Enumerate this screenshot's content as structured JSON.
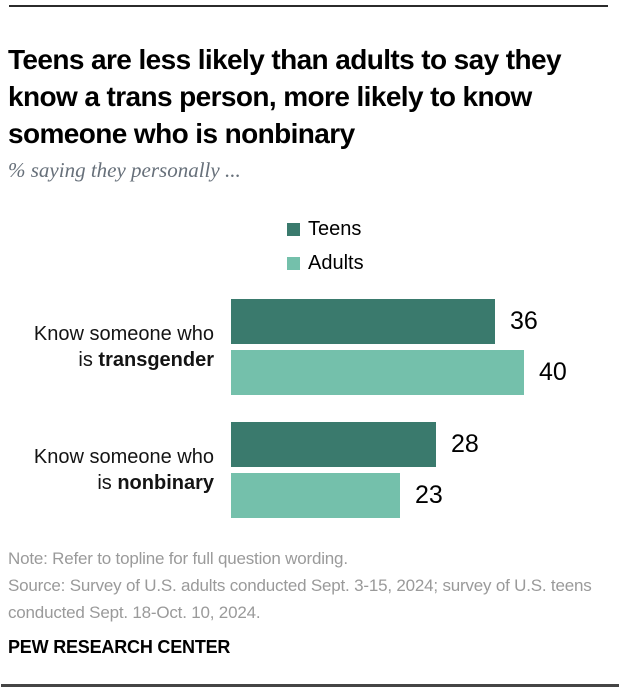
{
  "header": {
    "title": "Teens are less likely than adults to say they know a trans person, more likely to know someone who is nonbinary",
    "subtitle": "% saying they personally ..."
  },
  "chart_data": {
    "type": "bar",
    "orientation": "horizontal",
    "unit": "%",
    "value_range": [
      0,
      100
    ],
    "axis_shown": false,
    "legend_position": "top-center",
    "categories": [
      {
        "line1": "Know someone who",
        "line2_prefix": "is ",
        "line2_bold": "transgender"
      },
      {
        "line1": "Know someone who",
        "line2_prefix": "is ",
        "line2_bold": "nonbinary"
      }
    ],
    "series": [
      {
        "name": "Teens",
        "color": "#3A7A6D",
        "values": [
          36,
          28
        ]
      },
      {
        "name": "Adults",
        "color": "#74C0AB",
        "values": [
          40,
          23
        ]
      }
    ]
  },
  "footer": {
    "note": "Note: Refer to topline for full question wording.",
    "source": "Source: Survey of U.S. adults conducted Sept. 3-15, 2024; survey of U.S. teens conducted Sept. 18-Oct. 10, 2024.",
    "brand": "PEW RESEARCH CENTER"
  },
  "colors": {
    "teens_bar": "#3A7A6D",
    "adults_bar": "#74C0AB",
    "note_text": "#9a9a9a",
    "subtitle_text": "#67707a",
    "rule": "#2b2b2b"
  }
}
